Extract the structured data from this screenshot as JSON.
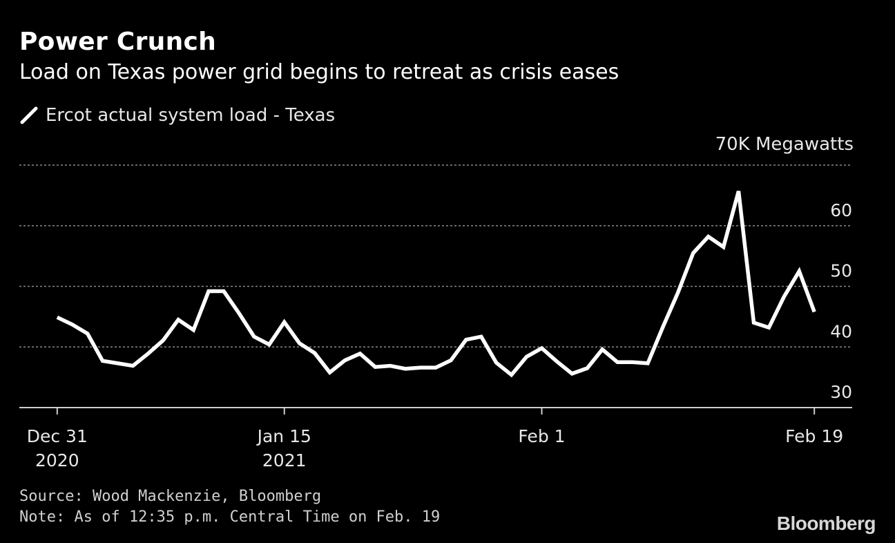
{
  "header": {
    "title": "Power Crunch",
    "subtitle": "Load on Texas power grid begins to retreat as crisis eases"
  },
  "legend": {
    "label": "Ercot actual system load - Texas",
    "icon": "line-swatch-icon"
  },
  "colors": {
    "background": "#000000",
    "line": "#ffffff",
    "grid": "#8a8a8a",
    "text": "#e8e8e8"
  },
  "chart_data": {
    "type": "line",
    "title": "Power Crunch",
    "subtitle": "Load on Texas power grid begins to retreat as crisis eases",
    "xlabel": "",
    "ylabel": "Megawatts",
    "unit_label": "70K Megawatts",
    "ylim": [
      30,
      70
    ],
    "yticks": [
      {
        "value": 30,
        "label": "30"
      },
      {
        "value": 40,
        "label": "40"
      },
      {
        "value": 50,
        "label": "50"
      },
      {
        "value": 60,
        "label": "60"
      },
      {
        "value": 70,
        "label": ""
      }
    ],
    "grid": true,
    "xlim_days": [
      -2.5,
      52.5
    ],
    "xticks": [
      {
        "day": 0,
        "line1": "Dec 31",
        "line2": "2020"
      },
      {
        "day": 15,
        "line1": "Jan 15",
        "line2": "2021"
      },
      {
        "day": 32,
        "line1": "Feb 1",
        "line2": ""
      },
      {
        "day": 50,
        "line1": "Feb 19",
        "line2": ""
      }
    ],
    "series": [
      {
        "name": "Ercot actual system load - Texas",
        "x": [
          0,
          1,
          2,
          3,
          4,
          5,
          6,
          7,
          8,
          9,
          10,
          11,
          12,
          13,
          14,
          15,
          16,
          17,
          18,
          19,
          20,
          21,
          22,
          23,
          24,
          25,
          26,
          27,
          28,
          29,
          30,
          31,
          32,
          33,
          34,
          35,
          36,
          37,
          38,
          39,
          40,
          41,
          42,
          43,
          44,
          45,
          46,
          47,
          48,
          49,
          50
        ],
        "values": [
          44.9,
          43.7,
          42.2,
          37.7,
          37.3,
          36.9,
          38.9,
          41.1,
          44.5,
          42.8,
          49.2,
          49.2,
          45.6,
          41.7,
          40.4,
          44.1,
          40.6,
          39.0,
          35.8,
          37.8,
          38.9,
          36.7,
          36.9,
          36.4,
          36.6,
          36.6,
          37.8,
          41.2,
          41.7,
          37.4,
          35.4,
          38.4,
          39.8,
          37.6,
          35.6,
          36.5,
          39.6,
          37.5,
          37.5,
          37.3,
          43.3,
          49.0,
          55.5,
          58.2,
          56.5,
          65.7,
          44.0,
          43.2,
          48.3,
          52.5,
          45.8
        ]
      }
    ]
  },
  "footer": {
    "source": "Source: Wood Mackenzie, Bloomberg",
    "note": "Note: As of 12:35 p.m. Central Time on Feb. 19",
    "brand": "Bloomberg"
  }
}
